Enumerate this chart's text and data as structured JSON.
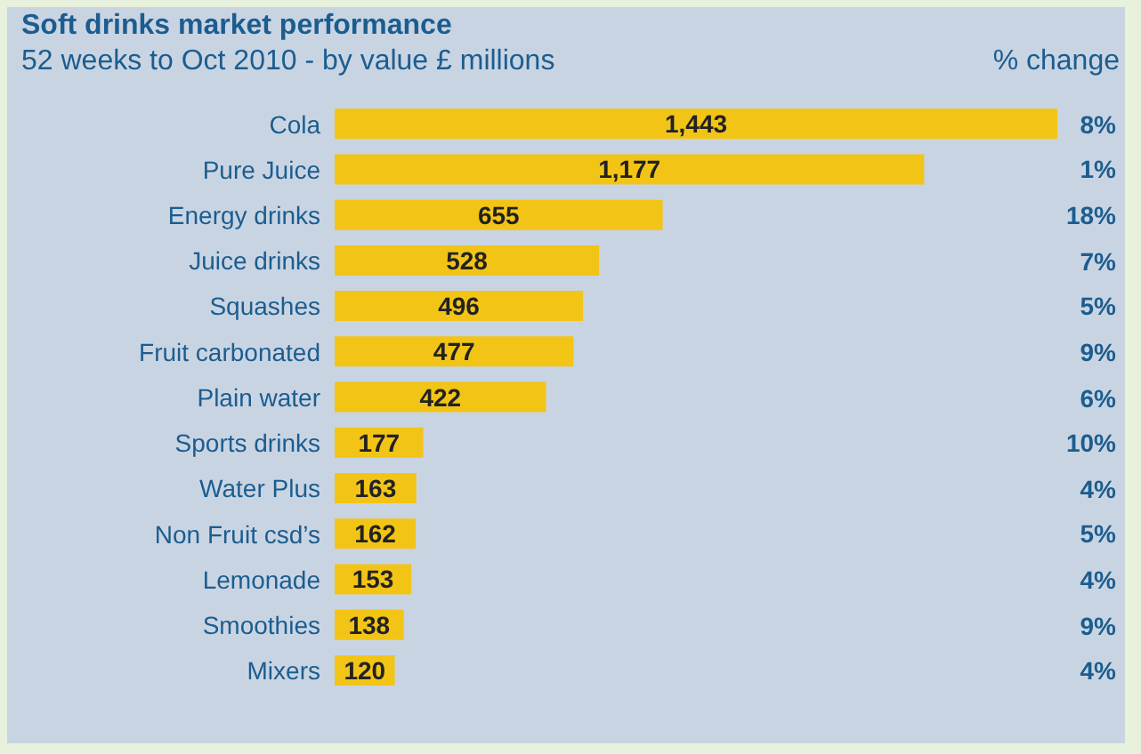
{
  "chart_data": {
    "type": "bar",
    "orientation": "horizontal",
    "title": "Soft drinks market performance",
    "subtitle": "52 weeks to Oct 2010 - by value £ millions",
    "categories": [
      "Cola",
      "Pure Juice",
      "Energy drinks",
      "Juice drinks",
      "Squashes",
      "Fruit carbonated",
      "Plain water",
      "Sports drinks",
      "Water Plus",
      "Non Fruit csd’s",
      "Lemonade",
      "Smoothies",
      "Mixers"
    ],
    "values": [
      1443,
      1177,
      655,
      528,
      496,
      477,
      422,
      177,
      163,
      162,
      153,
      138,
      120
    ],
    "value_labels": [
      "1,443",
      "1,177",
      "655",
      "528",
      "496",
      "477",
      "422",
      "177",
      "163",
      "162",
      "153",
      "138",
      "120"
    ],
    "color": "#f2c416",
    "xlim": [
      0,
      1450
    ],
    "tick_labels": "y",
    "annotations": [
      "% change",
      "8%",
      "1%",
      "18%",
      "7%",
      "5%",
      "9%",
      "6%",
      "10%",
      "4%",
      "5%",
      "4%",
      "9%",
      "4%"
    ]
  }
}
